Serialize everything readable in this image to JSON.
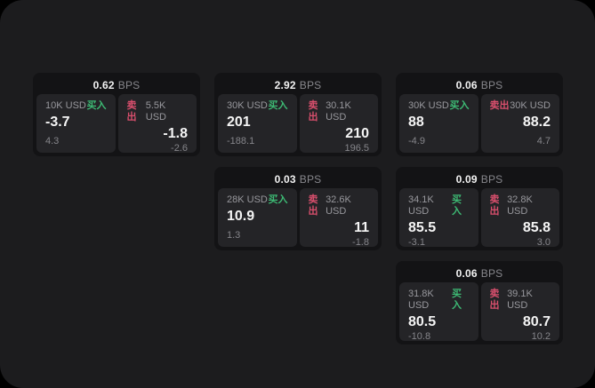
{
  "labels": {
    "buy": "买入",
    "sell": "卖出",
    "bps": "BPS"
  },
  "colors": {
    "buy_green": "#3dba74",
    "sell_red": "#d94f6d",
    "canvas_bg": "#1c1c1e",
    "card_bg": "#131315",
    "panel_bg": "#242427"
  },
  "cards": [
    {
      "bps": "0.62",
      "buy": {
        "amount": "10K USD",
        "value": "-3.7",
        "sub": "4.3"
      },
      "sell": {
        "amount": "5.5K USD",
        "value": "-1.8",
        "sub": "-2.6"
      }
    },
    {
      "bps": "2.92",
      "buy": {
        "amount": "30K USD",
        "value": "201",
        "sub": "-188.1"
      },
      "sell": {
        "amount": "30.1K USD",
        "value": "210",
        "sub": "196.5"
      }
    },
    {
      "bps": "0.06",
      "buy": {
        "amount": "30K USD",
        "value": "88",
        "sub": "-4.9"
      },
      "sell": {
        "amount": "30K USD",
        "value": "88.2",
        "sub": "4.7"
      }
    },
    {
      "bps": "0.03",
      "buy": {
        "amount": "28K USD",
        "value": "10.9",
        "sub": "1.3"
      },
      "sell": {
        "amount": "32.6K USD",
        "value": "11",
        "sub": "-1.8"
      }
    },
    {
      "bps": "0.09",
      "buy": {
        "amount": "34.1K USD",
        "value": "85.5",
        "sub": "-3.1"
      },
      "sell": {
        "amount": "32.8K USD",
        "value": "85.8",
        "sub": "3.0"
      }
    },
    {
      "bps": "0.06",
      "buy": {
        "amount": "31.8K USD",
        "value": "80.5",
        "sub": "-10.8"
      },
      "sell": {
        "amount": "39.1K USD",
        "value": "80.7",
        "sub": "10.2"
      }
    }
  ]
}
